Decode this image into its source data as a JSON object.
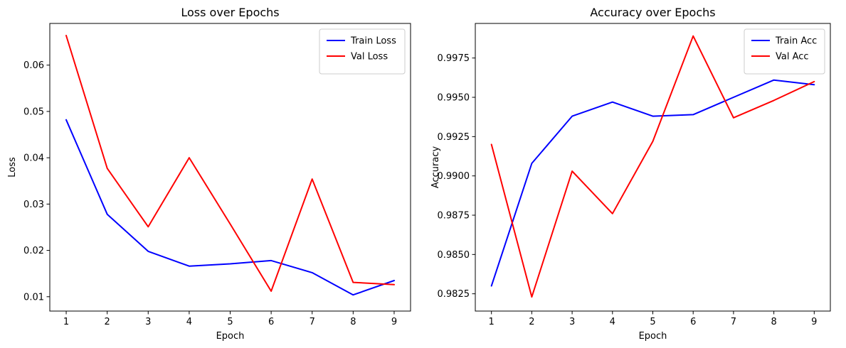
{
  "figure": {
    "background": "#ffffff"
  },
  "chart_data": [
    {
      "type": "line",
      "title": "Loss over Epochs",
      "xlabel": "Epoch",
      "ylabel": "Loss",
      "x": [
        1,
        2,
        3,
        4,
        5,
        6,
        7,
        8,
        9
      ],
      "xtick_labels": [
        "1",
        "2",
        "3",
        "4",
        "5",
        "6",
        "7",
        "8",
        "9"
      ],
      "yticks": [
        0.01,
        0.02,
        0.03,
        0.04,
        0.05,
        0.06
      ],
      "ytick_labels": [
        "0.01",
        "0.02",
        "0.03",
        "0.04",
        "0.05",
        "0.06"
      ],
      "xlim": [
        0.6,
        9.4
      ],
      "ylim": [
        0.0069,
        0.069
      ],
      "grid": false,
      "legend_position": "upper right",
      "series": [
        {
          "name": "Train Loss",
          "color": "#0000ff",
          "values": [
            0.0482,
            0.0278,
            0.0198,
            0.0166,
            0.0171,
            0.0178,
            0.0152,
            0.0104,
            0.0135
          ]
        },
        {
          "name": "Val Loss",
          "color": "#ff0000",
          "values": [
            0.0664,
            0.0377,
            0.0251,
            0.04,
            0.0257,
            0.0112,
            0.0354,
            0.0131,
            0.0126
          ]
        }
      ]
    },
    {
      "type": "line",
      "title": "Accuracy over Epochs",
      "xlabel": "Epoch",
      "ylabel": "Accuracy",
      "x": [
        1,
        2,
        3,
        4,
        5,
        6,
        7,
        8,
        9
      ],
      "xtick_labels": [
        "1",
        "2",
        "3",
        "4",
        "5",
        "6",
        "7",
        "8",
        "9"
      ],
      "yticks": [
        0.9825,
        0.985,
        0.9875,
        0.99,
        0.9925,
        0.995,
        0.9975
      ],
      "ytick_labels": [
        "0.9825",
        "0.9850",
        "0.9875",
        "0.9900",
        "0.9925",
        "0.9950",
        "0.9975"
      ],
      "xlim": [
        0.6,
        9.4
      ],
      "ylim": [
        0.9814,
        0.9997
      ],
      "grid": false,
      "legend_position": "upper right",
      "series": [
        {
          "name": "Train Acc",
          "color": "#0000ff",
          "values": [
            0.983,
            0.9908,
            0.9938,
            0.9947,
            0.9938,
            0.9939,
            0.995,
            0.9961,
            0.9958
          ]
        },
        {
          "name": "Val Acc",
          "color": "#ff0000",
          "values": [
            0.992,
            0.9823,
            0.9903,
            0.9876,
            0.9922,
            0.9989,
            0.9937,
            0.9948,
            0.996
          ]
        }
      ]
    }
  ]
}
